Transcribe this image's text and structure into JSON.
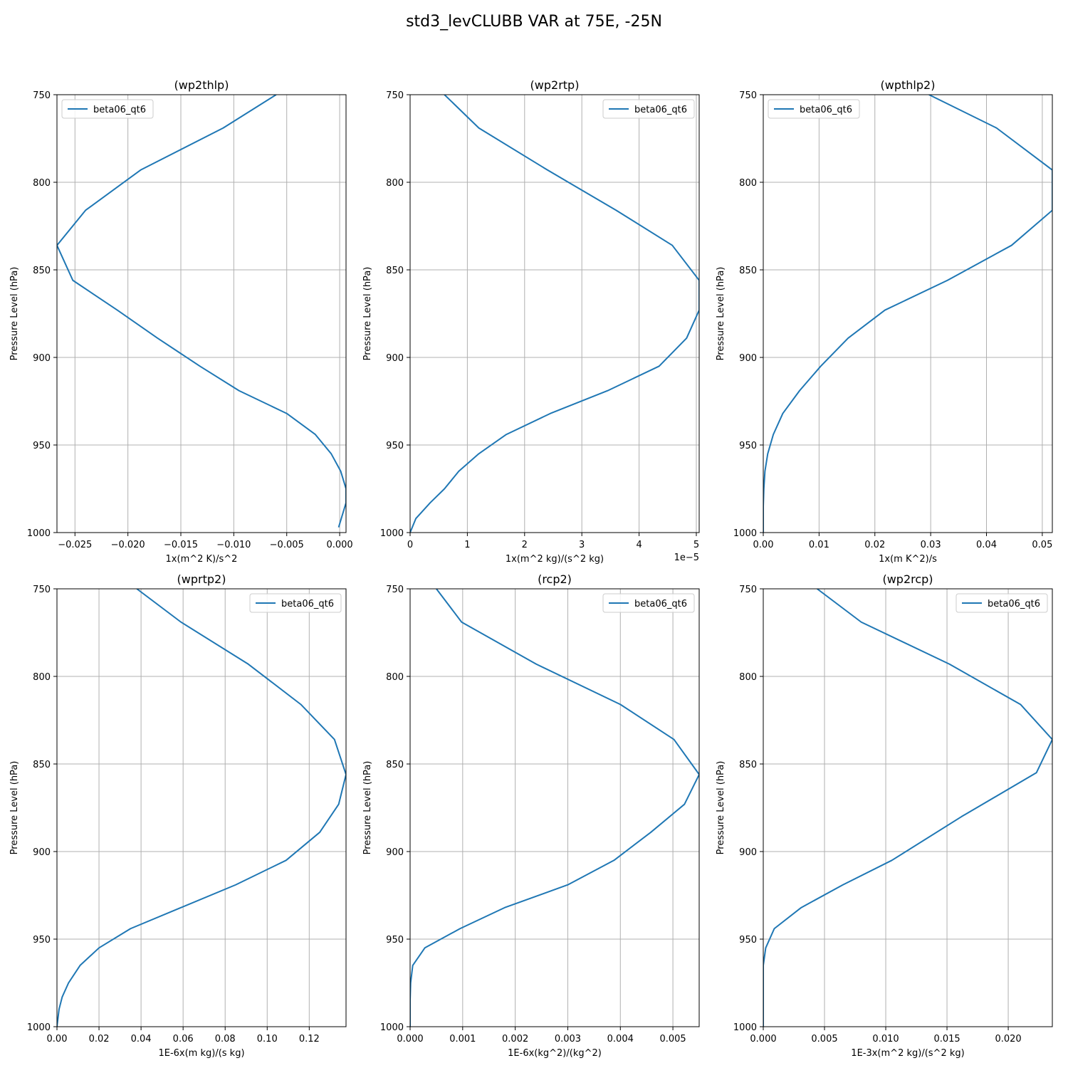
{
  "figure": {
    "title": "std3_levCLUBB VAR at 75E, -25N",
    "series_color": "#1f77b4",
    "grid_color": "#b0b0b0"
  },
  "chart_data": [
    {
      "type": "line",
      "title": "(wp2thlp)",
      "xlabel": "1x(m^2 K)/s^2",
      "ylabel": "Pressure Level (hPa)",
      "xlim": [
        -0.0267,
        0.0006
      ],
      "ylim": [
        1000,
        750
      ],
      "x_offset_label": "",
      "xticks": [
        -0.025,
        -0.02,
        -0.015,
        -0.01,
        -0.005,
        0.0
      ],
      "xtick_labels": [
        "−0.025",
        "−0.020",
        "−0.015",
        "−0.010",
        "−0.005",
        "0.000"
      ],
      "yticks": [
        750,
        800,
        850,
        900,
        950,
        1000
      ],
      "ytick_labels": [
        "750",
        "800",
        "850",
        "900",
        "950",
        "1000"
      ],
      "legend": {
        "location": "upper left",
        "labels": [
          "beta06_qt6"
        ]
      },
      "grid": true,
      "series": [
        {
          "name": "beta06_qt6",
          "x": [
            -0.006,
            -0.011,
            -0.0188,
            -0.024,
            -0.0267,
            -0.0252,
            -0.021,
            -0.0172,
            -0.0132,
            -0.0095,
            -0.005,
            -0.0023,
            -0.0008,
            0.0001,
            0.0006,
            0.0006,
            -0.0001
          ],
          "y": [
            750,
            769,
            793,
            816,
            836,
            856,
            873,
            889,
            905,
            919,
            932,
            944,
            955,
            965,
            975,
            983,
            997
          ]
        }
      ]
    },
    {
      "type": "line",
      "title": "(wp2rtp)",
      "xlabel": "1x(m^2 kg)/(s^2 kg)",
      "ylabel": "Pressure Level (hPa)",
      "xlim": [
        0,
        5.05
      ],
      "ylim": [
        1000,
        750
      ],
      "x_offset_label": "1e−5",
      "xticks": [
        0,
        1,
        2,
        3,
        4,
        5
      ],
      "xtick_labels": [
        "0",
        "1",
        "2",
        "3",
        "4",
        "5"
      ],
      "yticks": [
        750,
        800,
        850,
        900,
        950,
        1000
      ],
      "ytick_labels": [
        "750",
        "800",
        "850",
        "900",
        "950",
        "1000"
      ],
      "legend": {
        "location": "upper right",
        "labels": [
          "beta06_qt6"
        ]
      },
      "grid": true,
      "series": [
        {
          "name": "beta06_qt6",
          "x": [
            0.6,
            1.2,
            2.4,
            3.6,
            4.58,
            5.05,
            5.05,
            4.83,
            4.35,
            3.45,
            2.45,
            1.68,
            1.2,
            0.85,
            0.6,
            0.35,
            0.1,
            0.0
          ],
          "y": [
            750,
            769,
            793,
            816,
            836,
            856,
            873,
            889,
            905,
            919,
            932,
            944,
            955,
            965,
            975,
            983,
            992,
            1000
          ]
        }
      ]
    },
    {
      "type": "line",
      "title": "(wpthlp2)",
      "xlabel": "1x(m K^2)/s",
      "ylabel": "Pressure Level (hPa)",
      "xlim": [
        0,
        0.0518
      ],
      "ylim": [
        1000,
        750
      ],
      "x_offset_label": "",
      "xticks": [
        0.0,
        0.01,
        0.02,
        0.03,
        0.04,
        0.05
      ],
      "xtick_labels": [
        "0.00",
        "0.01",
        "0.02",
        "0.03",
        "0.04",
        "0.05"
      ],
      "yticks": [
        750,
        800,
        850,
        900,
        950,
        1000
      ],
      "ytick_labels": [
        "750",
        "800",
        "850",
        "900",
        "950",
        "1000"
      ],
      "legend": {
        "location": "upper left",
        "labels": [
          "beta06_qt6"
        ]
      },
      "grid": true,
      "series": [
        {
          "name": "beta06_qt6",
          "x": [
            0.0297,
            0.0418,
            0.0518,
            0.0518,
            0.0445,
            0.033,
            0.0218,
            0.0152,
            0.0103,
            0.0065,
            0.0035,
            0.0018,
            0.0008,
            0.0003,
            0.0001,
            0.0,
            0.0
          ],
          "y": [
            750,
            769,
            793,
            816,
            836,
            856,
            873,
            889,
            905,
            919,
            932,
            944,
            955,
            965,
            975,
            985,
            1000
          ]
        }
      ]
    },
    {
      "type": "line",
      "title": "(wprtp2)",
      "xlabel": "1E-6x(m kg)/(s kg)",
      "ylabel": "Pressure Level (hPa)",
      "xlim": [
        0,
        0.1375
      ],
      "ylim": [
        1000,
        750
      ],
      "x_offset_label": "",
      "xticks": [
        0.0,
        0.02,
        0.04,
        0.06,
        0.08,
        0.1,
        0.12
      ],
      "xtick_labels": [
        "0.00",
        "0.02",
        "0.04",
        "0.06",
        "0.08",
        "0.10",
        "0.12"
      ],
      "yticks": [
        750,
        800,
        850,
        900,
        950,
        1000
      ],
      "ytick_labels": [
        "750",
        "800",
        "850",
        "900",
        "950",
        "1000"
      ],
      "legend": {
        "location": "upper right",
        "labels": [
          "beta06_qt6"
        ]
      },
      "grid": true,
      "series": [
        {
          "name": "beta06_qt6",
          "x": [
            0.038,
            0.059,
            0.091,
            0.116,
            0.132,
            0.1375,
            0.134,
            0.125,
            0.109,
            0.085,
            0.059,
            0.035,
            0.02,
            0.011,
            0.0055,
            0.0025,
            0.001,
            0.0
          ],
          "y": [
            750,
            769,
            793,
            816,
            836,
            856,
            873,
            889,
            905,
            919,
            932,
            944,
            955,
            965,
            975,
            983,
            990,
            1000
          ]
        }
      ]
    },
    {
      "type": "line",
      "title": "(rcp2)",
      "xlabel": "1E-6x(kg^2)/(kg^2)",
      "ylabel": "Pressure Level (hPa)",
      "xlim": [
        0,
        0.0055
      ],
      "ylim": [
        1000,
        750
      ],
      "x_offset_label": "",
      "xticks": [
        0.0,
        0.001,
        0.002,
        0.003,
        0.004,
        0.005
      ],
      "xtick_labels": [
        "0.000",
        "0.001",
        "0.002",
        "0.003",
        "0.004",
        "0.005"
      ],
      "yticks": [
        750,
        800,
        850,
        900,
        950,
        1000
      ],
      "ytick_labels": [
        "750",
        "800",
        "850",
        "900",
        "950",
        "1000"
      ],
      "legend": {
        "location": "upper right",
        "labels": [
          "beta06_qt6"
        ]
      },
      "grid": true,
      "series": [
        {
          "name": "beta06_qt6",
          "x": [
            0.0005,
            0.00098,
            0.0024,
            0.004,
            0.00502,
            0.0055,
            0.00522,
            0.00458,
            0.00388,
            0.003,
            0.0018,
            0.00095,
            0.00028,
            5e-05,
            1e-05,
            0.0,
            0.0
          ],
          "y": [
            750,
            769,
            793,
            816,
            836,
            856,
            873,
            889,
            905,
            919,
            932,
            944,
            955,
            965,
            975,
            985,
            1000
          ]
        }
      ]
    },
    {
      "type": "line",
      "title": "(wp2rcp)",
      "xlabel": "1E-3x(m^2 kg)/(s^2 kg)",
      "ylabel": "Pressure Level (hPa)",
      "xlim": [
        0,
        0.0236
      ],
      "ylim": [
        1000,
        750
      ],
      "x_offset_label": "",
      "xticks": [
        0.0,
        0.005,
        0.01,
        0.015,
        0.02
      ],
      "xtick_labels": [
        "0.000",
        "0.005",
        "0.010",
        "0.015",
        "0.020"
      ],
      "yticks": [
        750,
        800,
        850,
        900,
        950,
        1000
      ],
      "ytick_labels": [
        "750",
        "800",
        "850",
        "900",
        "950",
        "1000"
      ],
      "legend": {
        "location": "upper right",
        "labels": [
          "beta06_qt6"
        ]
      },
      "grid": true,
      "series": [
        {
          "name": "beta06_qt6",
          "x": [
            0.0044,
            0.008,
            0.0152,
            0.021,
            0.0236,
            0.0223,
            0.0162,
            0.0105,
            0.0065,
            0.0031,
            0.0009,
            0.0002,
            0.0,
            0.0
          ],
          "y": [
            750,
            769,
            793,
            816,
            836,
            855,
            880,
            905,
            919,
            932,
            944,
            955,
            965,
            1000
          ]
        }
      ]
    }
  ]
}
